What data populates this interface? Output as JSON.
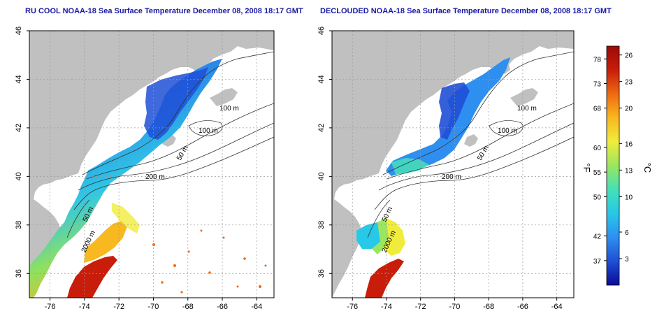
{
  "titles": {
    "left": "RU COOL NOAA-18 Sea Surface Temperature December 08, 2008 18:17 GMT",
    "right": "DECLOUDED NOAA-18 Sea Surface Temperature December 08, 2008 18:17 GMT"
  },
  "map": {
    "lon_ticks": [
      -76,
      -74,
      -72,
      -70,
      -68,
      -66,
      -64
    ],
    "lat_ticks": [
      36,
      38,
      40,
      42,
      44,
      46
    ],
    "lon_range": [
      -77.2,
      -63
    ],
    "lat_range": [
      35,
      46
    ],
    "land_color": "#c0c0c0",
    "no_data_color": "#ffffff",
    "grid": "dotted"
  },
  "contour_labels": {
    "left": [
      "100 m",
      "100 m",
      "50 m",
      "200 m",
      "50 m",
      "2000 m"
    ],
    "right": [
      "100 m",
      "100 m",
      "50 m",
      "200 m",
      "50 m",
      "2000 m"
    ]
  },
  "colorbar": {
    "unit_f": "°F",
    "unit_c": "°C",
    "f_ticks": [
      78,
      73,
      68,
      60,
      55,
      50,
      42,
      37
    ],
    "c_ticks": [
      26,
      23,
      20,
      16,
      13,
      10,
      6,
      3
    ],
    "c_range": [
      0,
      27
    ],
    "stops": [
      "#0a0a96",
      "#1f4fd6",
      "#2f8ff0",
      "#27c8e8",
      "#44e0b8",
      "#9ae660",
      "#f0ec3c",
      "#f8b820",
      "#ee6a12",
      "#c81d0a",
      "#9c0a08"
    ]
  }
}
